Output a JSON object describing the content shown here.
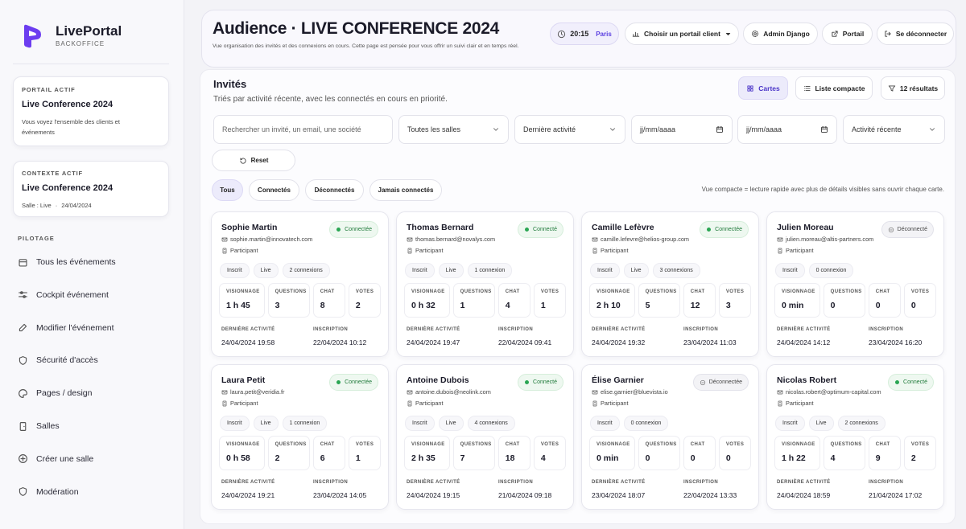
{
  "sidebar": {
    "brand": {
      "name": "LivePortal",
      "tagline": "BACKOFFICE"
    },
    "portal": {
      "label": "PORTAIL ACTIF",
      "title": "Live Conference 2024",
      "description": "Vous voyez l'ensemble des clients et événements"
    },
    "context": {
      "label": "CONTEXTE ACTIF",
      "title": "Live Conference 2024",
      "room": "Salle : Live",
      "date": "24/04/2024"
    },
    "nav_title": "PILOTAGE",
    "nav": [
      "Tous les événements",
      "Cockpit événement",
      "Modifier l'événement",
      "Sécurité d'accès",
      "Pages / design",
      "Salles",
      "Créer une salle",
      "Modération"
    ]
  },
  "header": {
    "title": "Audience · LIVE CONFERENCE 2024",
    "subtitle": "Vue organisation des invités et des connexions en cours. Cette page est pensée pour vous offrir un suivi clair et en temps réel.",
    "time": "20:15",
    "city": "Paris",
    "buttons": [
      "Choisir un portail client",
      "Admin Django",
      "Portail",
      "Se déconnecter"
    ]
  },
  "guests": {
    "title": "Invités",
    "subtitle": "Triés par activité récente, avec les connectés en cours en priorité.",
    "views": [
      "Cartes",
      "Liste compacte",
      "12 résultats"
    ],
    "filters": [
      "Rechercher un invité, un email, une société",
      "Toutes les salles",
      "Dernière activité",
      "jj/mm/aaaa",
      "jj/mm/aaaa",
      "Activité récente"
    ],
    "reset": "Reset",
    "tabs": [
      "Tous",
      "Connectés",
      "Déconnectés",
      "Jamais connectés"
    ],
    "hint": "Vue compacte = lecture rapide avec plus de détails visibles sans ouvrir chaque carte.",
    "stat_labels": [
      "VISIONNAGE",
      "QUESTIONS",
      "CHAT",
      "VOTES"
    ],
    "date_labels": [
      "DERNIÈRE ACTIVITÉ",
      "INSCRIPTION"
    ],
    "cards": [
      {
        "name": "Sophie Martin",
        "status": "Connectée",
        "email": "sophie.martin@innovatech.com",
        "role": "Participant",
        "tags": [
          "Inscrit",
          "Live",
          "2 connexions"
        ],
        "stats": [
          "1 h 45",
          3,
          8,
          2
        ],
        "last_activity": "24/04/2024 19:58",
        "registered": "22/04/2024 10:12"
      },
      {
        "name": "Thomas Bernard",
        "status": "Connecté",
        "email": "thomas.bernard@novalys.com",
        "role": "Participant",
        "tags": [
          "Inscrit",
          "Live",
          "1 connexion"
        ],
        "stats": [
          "0 h 32",
          1,
          4,
          1
        ],
        "last_activity": "24/04/2024 19:47",
        "registered": "22/04/2024 09:41"
      },
      {
        "name": "Camille Lefèvre",
        "status": "Connectée",
        "email": "camille.lefevre@helios-group.com",
        "role": "Participant",
        "tags": [
          "Inscrit",
          "Live",
          "3 connexions"
        ],
        "stats": [
          "2 h 10",
          5,
          12,
          3
        ],
        "last_activity": "24/04/2024 19:32",
        "registered": "23/04/2024 11:03"
      },
      {
        "name": "Julien Moreau",
        "status": "Déconnecté",
        "email": "julien.moreau@altis-partners.com",
        "role": "Participant",
        "tags": [
          "Inscrit",
          "0 connexion"
        ],
        "stats": [
          "0 min",
          0,
          0,
          0
        ],
        "last_activity": "24/04/2024 14:12",
        "registered": "23/04/2024 16:20"
      },
      {
        "name": "Laura Petit",
        "status": "Connectée",
        "email": "laura.petit@veridia.fr",
        "role": "Participant",
        "tags": [
          "Inscrit",
          "Live",
          "1 connexion"
        ],
        "stats": [
          "0 h 58",
          2,
          6,
          1
        ],
        "last_activity": "24/04/2024 19:21",
        "registered": "23/04/2024 14:05"
      },
      {
        "name": "Antoine Dubois",
        "status": "Connecté",
        "email": "antoine.dubois@neolink.com",
        "role": "Participant",
        "tags": [
          "Inscrit",
          "Live",
          "4 connexions"
        ],
        "stats": [
          "2 h 35",
          7,
          18,
          4
        ],
        "last_activity": "24/04/2024 19:15",
        "registered": "21/04/2024 09:18"
      },
      {
        "name": "Élise Garnier",
        "status": "Déconnectée",
        "email": "elise.garnier@bluevista.io",
        "role": "Participant",
        "tags": [
          "Inscrit",
          "0 connexion"
        ],
        "stats": [
          "0 min",
          0,
          0,
          0
        ],
        "last_activity": "23/04/2024 18:07",
        "registered": "22/04/2024 13:33"
      },
      {
        "name": "Nicolas Robert",
        "status": "Connecté",
        "email": "nicolas.robert@optimum-capital.com",
        "role": "Participant",
        "tags": [
          "Inscrit",
          "Live",
          "2 connexions"
        ],
        "stats": [
          "1 h 22",
          4,
          9,
          2
        ],
        "last_activity": "24/04/2024 18:59",
        "registered": "21/04/2024 17:02"
      }
    ]
  }
}
